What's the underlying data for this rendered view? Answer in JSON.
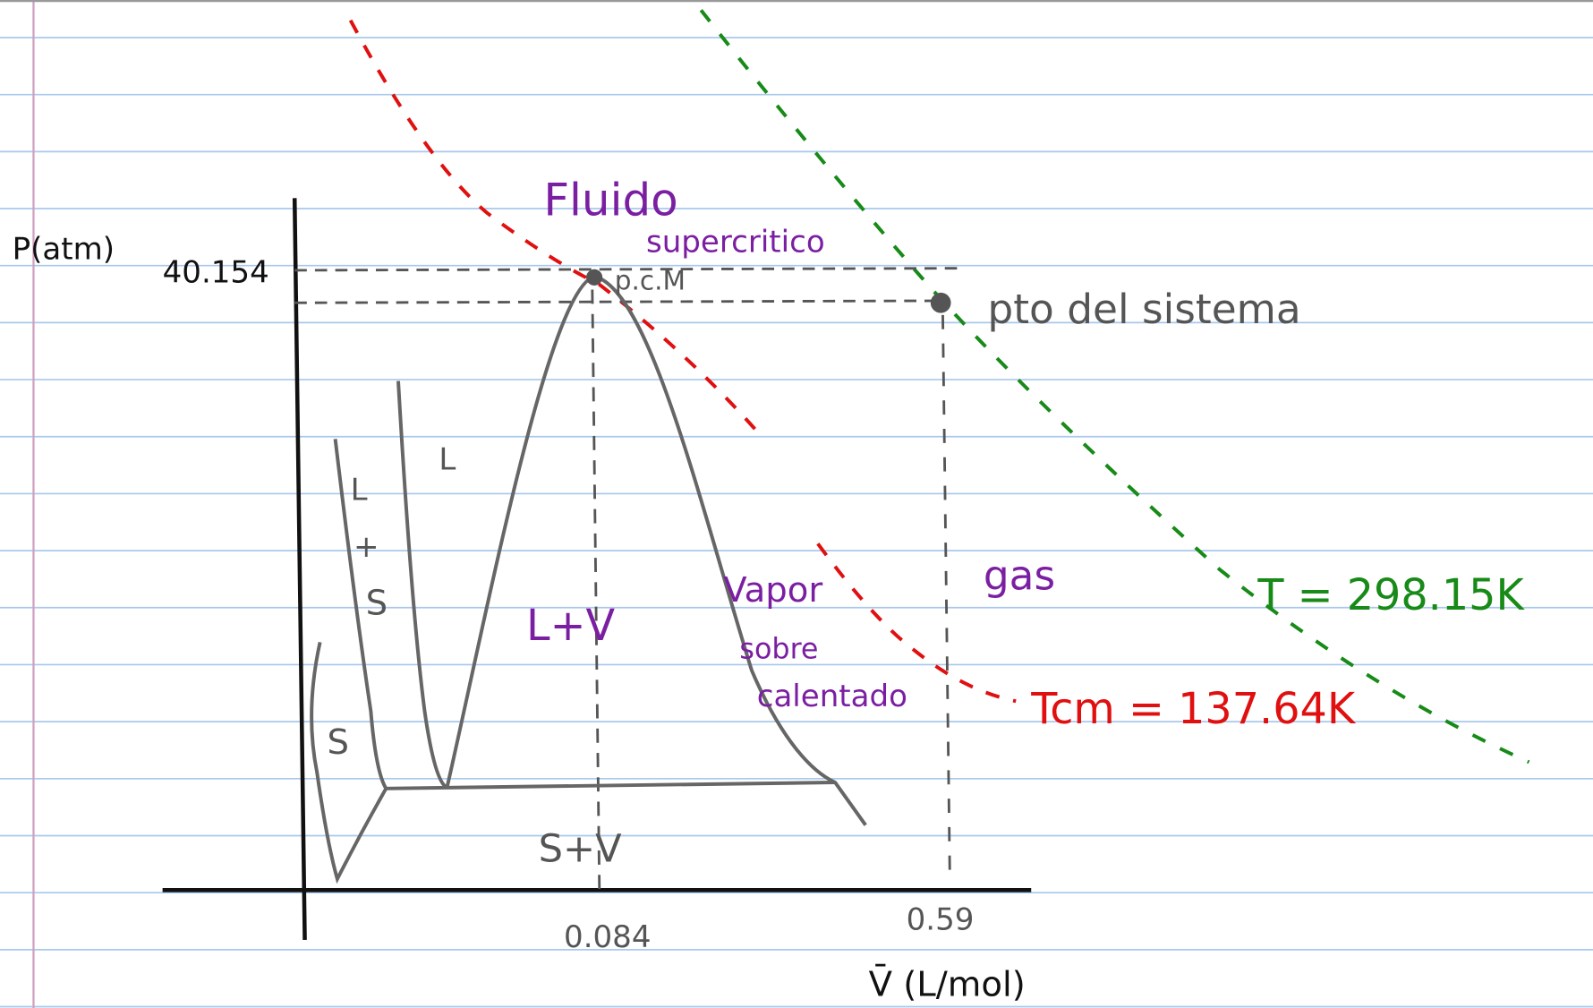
{
  "axes": {
    "y_label": "P(atm)",
    "y_value": "40.154",
    "x_label": "V̄ (L/mol)",
    "x_values": [
      "0.084",
      "0.59"
    ]
  },
  "points": {
    "critical": "p.c.M",
    "system": "pto del sistema"
  },
  "regions": {
    "supercritical": [
      "Fluido",
      "supercritico"
    ],
    "liquid": "L",
    "liquid_solid": [
      "L",
      "+",
      "S"
    ],
    "solid": "S",
    "liquid_vapor": "L+V",
    "superheated_vapor": [
      "Vapor",
      "sobre",
      "calentado"
    ],
    "gas": "gas",
    "solid_vapor": "S+V"
  },
  "isotherms": {
    "system": "T = 298.15K",
    "critical": "Tcm = 137.64K"
  }
}
